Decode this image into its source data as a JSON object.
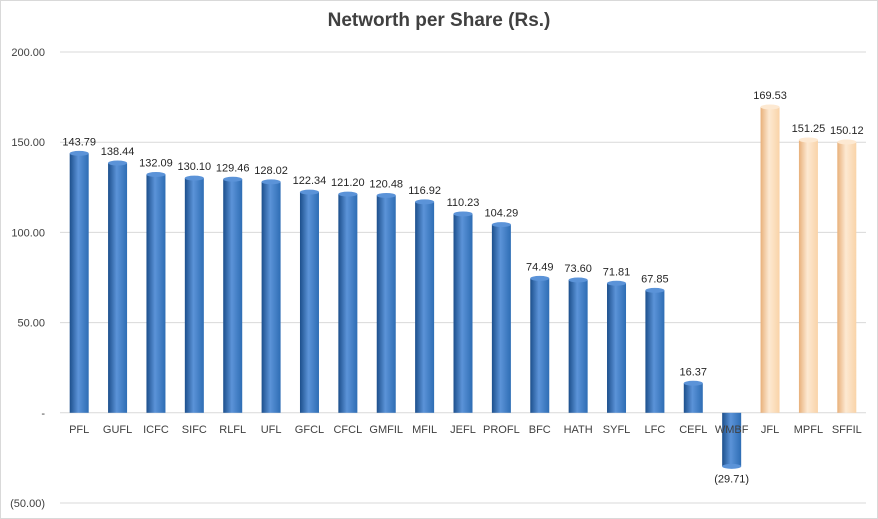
{
  "chart_data": {
    "type": "bar",
    "title": "Networth per Share (Rs.)",
    "xlabel": "",
    "ylabel": "",
    "ylim": [
      -50,
      200
    ],
    "grid": true,
    "legend": "none",
    "y_ticks": [
      200,
      150,
      100,
      50,
      0,
      -50
    ],
    "y_tick_labels": [
      "200.00",
      "150.00",
      "100.00",
      "50.00",
      "-",
      "(50.00)"
    ],
    "categories": [
      "PFL",
      "GUFL",
      "ICFC",
      "SIFC",
      "RLFL",
      "UFL",
      "GFCL",
      "CFCL",
      "GMFIL",
      "MFIL",
      "JEFL",
      "PROFL",
      "BFC",
      "HATH",
      "SYFL",
      "LFC",
      "CEFL",
      "WMBF",
      "JFL",
      "MPFL",
      "SFFIL"
    ],
    "values": [
      143.79,
      138.44,
      132.09,
      130.1,
      129.46,
      128.02,
      122.34,
      121.2,
      120.48,
      116.92,
      110.23,
      104.29,
      74.49,
      73.6,
      71.81,
      67.85,
      16.37,
      -29.71,
      169.53,
      151.25,
      150.12
    ],
    "data_labels": [
      "143.79",
      "138.44",
      "132.09",
      "130.10",
      "129.46",
      "128.02",
      "122.34",
      "121.20",
      "120.48",
      "116.92",
      "110.23",
      "104.29",
      "74.49",
      "73.60",
      "71.81",
      "67.85",
      "16.37",
      "(29.71)",
      "169.53",
      "151.25",
      "150.12"
    ],
    "highlight_categories": [
      "JFL",
      "MPFL",
      "SFFIL"
    ],
    "colors": {
      "bar_primary": "#2e6db4",
      "bar_primary_light": "#5b93d8",
      "bar_primary_dark": "#1c4f8c",
      "bar_highlight": "#f9d3a8",
      "bar_highlight_light": "#fde9d2",
      "bar_highlight_dark": "#e8b07a",
      "grid": "#d9d9d9",
      "axis_text": "#404040"
    }
  }
}
